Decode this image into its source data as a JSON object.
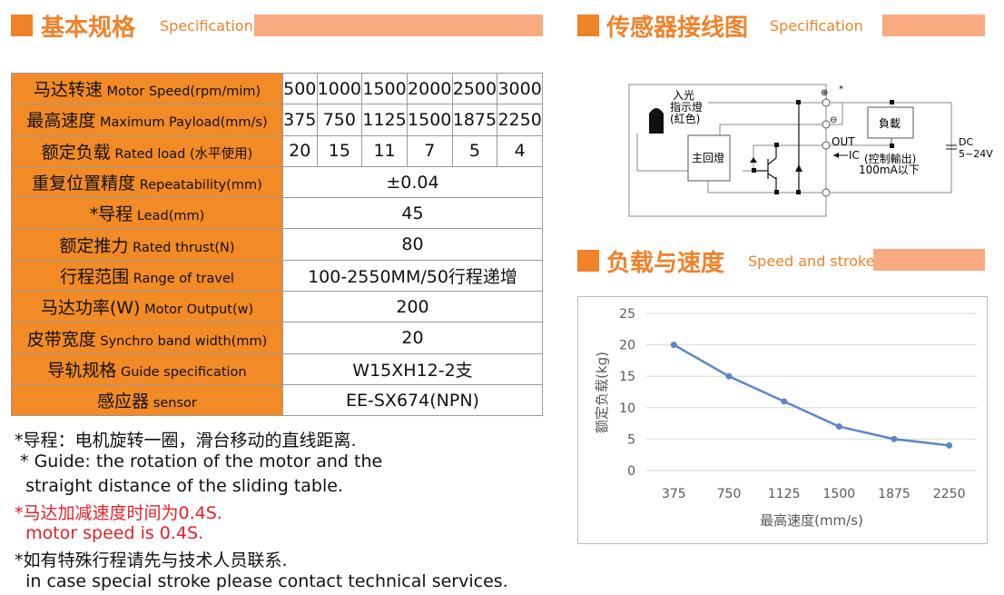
{
  "spec": {
    "title": "基本规格",
    "subtitle": "Specification",
    "rows": [
      {
        "cn": "马达转速",
        "en": "Motor Speed(rpm/mim)",
        "values": [
          "500",
          "1000",
          "1500",
          "2000",
          "2500",
          "3000"
        ]
      },
      {
        "cn": "最高速度",
        "en": "Maximum Payload(mm/s)",
        "values": [
          "375",
          "750",
          "1125",
          "1500",
          "1875",
          "2250"
        ]
      },
      {
        "cn": "额定负载",
        "en": "Rated load (水平使用)",
        "values": [
          "20",
          "15",
          "11",
          "7",
          "5",
          "4"
        ]
      },
      {
        "cn": "重复位置精度",
        "en": "Repeatability(mm)",
        "value": "±0.04"
      },
      {
        "cn": "*导程",
        "en": "Lead(mm)",
        "value": "45"
      },
      {
        "cn": "额定推力",
        "en": "Rated thrust(N)",
        "value": "80"
      },
      {
        "cn": "行程范围",
        "en": "Range of travel",
        "value": "100-2550MM/50行程递增"
      },
      {
        "cn": "马达功率(W)",
        "en": "Motor Output(w)",
        "value": "200"
      },
      {
        "cn": "皮带宽度",
        "en": "Synchro band width(mm)",
        "value": "20"
      },
      {
        "cn": "导轨规格",
        "en": "Guide specification",
        "value": "W15XH12-2支"
      },
      {
        "cn": "感应器",
        "en": "sensor",
        "value": "EE-SX674(NPN)"
      }
    ]
  },
  "notes": [
    {
      "text": "*导程：电机旋转一圈，滑台移动的直线距离.",
      "red": false
    },
    {
      "text": " * Guide: the rotation of the motor and the",
      "red": false
    },
    {
      "text": "  straight distance of the sliding table.",
      "red": false
    },
    {
      "text": "*马达加减速度时间为0.4S.",
      "red": true
    },
    {
      "text": "  motor speed is 0.4S.",
      "red": true
    },
    {
      "text": "*如有特殊行程请先与技术人员联系.",
      "red": false
    },
    {
      "text": "  in case special stroke please contact technical services.",
      "red": false
    }
  ],
  "wiring": {
    "title": "传感器接线图",
    "subtitle": "Specification",
    "labels": {
      "light": "入光",
      "indicator": "指示燈",
      "red": "(紅色)",
      "main": "主回燈",
      "load": "負載",
      "out": "OUT",
      "ic": "IC",
      "ctrl": "(控制輸出)",
      "current": "100mA以下",
      "dc": "DC",
      "voltage": "5~24V",
      "plus": "⊕",
      "minus": "⊖",
      "star": "*"
    }
  },
  "load_speed": {
    "title": "负载与速度",
    "subtitle": "Speed and stroke"
  },
  "colors": {
    "accent": "#f0822a",
    "bar": "#f8aa80",
    "line": "#5b87c5"
  },
  "chart_data": {
    "type": "line",
    "x": [
      375,
      750,
      1125,
      1500,
      1875,
      2250
    ],
    "categories": [
      "375",
      "750",
      "1125",
      "1500",
      "1875",
      "2250"
    ],
    "values": [
      20,
      15,
      11,
      7,
      5,
      4
    ],
    "xlabel": "最高速度(mm/s)",
    "ylabel": "额定负载(kg)",
    "ylim": [
      0,
      25
    ],
    "yticks": [
      "0",
      "5",
      "10",
      "15",
      "20",
      "25"
    ],
    "grid": true
  }
}
